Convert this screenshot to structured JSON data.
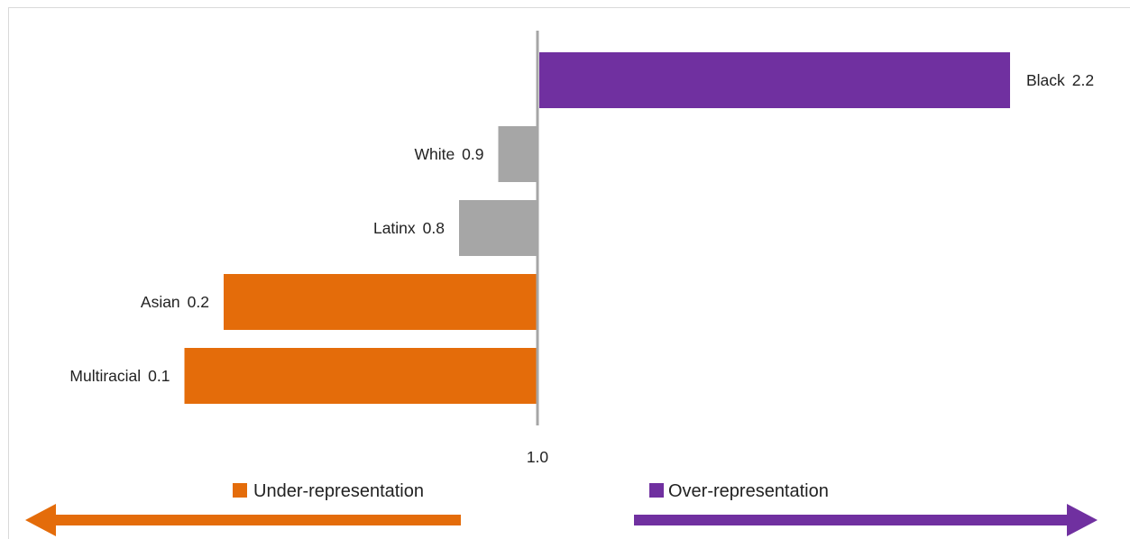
{
  "chart_data": {
    "type": "bar",
    "orientation": "horizontal",
    "title": "",
    "baseline": 1.0,
    "baseline_label": "1.0",
    "categories": [
      "Black",
      "White",
      "Latinx",
      "Asian",
      "Multiracial"
    ],
    "values": [
      2.2,
      0.9,
      0.8,
      0.2,
      0.1
    ],
    "value_labels": [
      "2.2",
      "0.9",
      "0.8",
      "0.2",
      "0.1"
    ],
    "bar_colors": [
      "#7030a0",
      "#a6a6a6",
      "#a6a6a6",
      "#e46c0a",
      "#e46c0a"
    ],
    "legend": [
      {
        "label": "Under-representation",
        "color": "#e46c0a"
      },
      {
        "label": "Over-representation",
        "color": "#7030a0"
      }
    ],
    "grid": false
  }
}
